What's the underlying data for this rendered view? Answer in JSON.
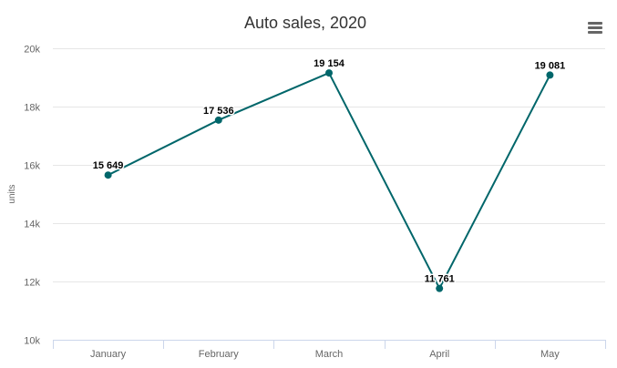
{
  "chart_data": {
    "type": "line",
    "title": "Auto sales, 2020",
    "ylabel": "units",
    "xlabel": "",
    "categories": [
      "January",
      "February",
      "March",
      "April",
      "May"
    ],
    "series": [
      {
        "values": [
          15649,
          17536,
          19154,
          11761,
          19081
        ],
        "data_labels": [
          "15 649",
          "17 536",
          "19 154",
          "11 761",
          "19 081"
        ],
        "color": "#00666a"
      }
    ],
    "ylim": [
      10000,
      20000
    ],
    "yticks": [
      10000,
      12000,
      14000,
      16000,
      18000,
      20000
    ],
    "ytick_labels": [
      "10k",
      "12k",
      "14k",
      "16k",
      "18k",
      "20k"
    ],
    "grid": true,
    "legend": "none"
  },
  "menu": {
    "icon": "hamburger-menu-icon"
  }
}
